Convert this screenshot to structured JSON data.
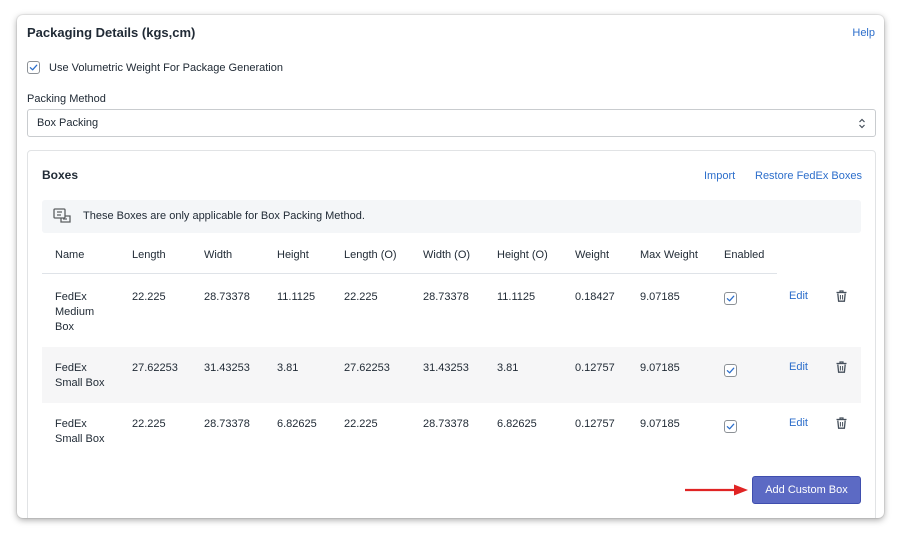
{
  "card": {
    "title": "Packaging Details (kgs,cm)",
    "help_label": "Help"
  },
  "volumetric": {
    "label": "Use Volumetric Weight For Package Generation",
    "checked": true
  },
  "packing_method": {
    "label": "Packing Method",
    "value": "Box Packing"
  },
  "boxes": {
    "title": "Boxes",
    "import_label": "Import",
    "restore_label": "Restore FedEx Boxes",
    "banner_text": "These Boxes are only applicable for Box Packing Method.",
    "columns": [
      "Name",
      "Length",
      "Width",
      "Height",
      "Length (O)",
      "Width (O)",
      "Height (O)",
      "Weight",
      "Max Weight",
      "Enabled"
    ],
    "rows": [
      {
        "name_lines": [
          "FedEx",
          "Medium",
          "Box"
        ],
        "length": "22.225",
        "width": "28.73378",
        "height": "11.1125",
        "length_o": "22.225",
        "width_o": "28.73378",
        "height_o": "11.1125",
        "weight": "0.18427",
        "max_weight": "9.07185",
        "enabled": true,
        "edit_label": "Edit"
      },
      {
        "name_lines": [
          "FedEx",
          "Small Box"
        ],
        "length": "27.62253",
        "width": "31.43253",
        "height": "3.81",
        "length_o": "27.62253",
        "width_o": "31.43253",
        "height_o": "3.81",
        "weight": "0.12757",
        "max_weight": "9.07185",
        "enabled": true,
        "edit_label": "Edit"
      },
      {
        "name_lines": [
          "FedEx",
          "Small Box"
        ],
        "length": "22.225",
        "width": "28.73378",
        "height": "6.82625",
        "length_o": "22.225",
        "width_o": "28.73378",
        "height_o": "6.82625",
        "weight": "0.12757",
        "max_weight": "9.07185",
        "enabled": true,
        "edit_label": "Edit"
      }
    ],
    "add_button_label": "Add Custom Box"
  },
  "colors": {
    "link": "#2c6ecb",
    "primary_button": "#5c6ac4",
    "annotation_arrow": "#e02424"
  },
  "icons": {
    "checkbox": "check-icon",
    "select": "select-chevron-icon",
    "banner": "box-info-icon",
    "delete": "trash-icon",
    "annotation": "red-arrow-icon"
  }
}
